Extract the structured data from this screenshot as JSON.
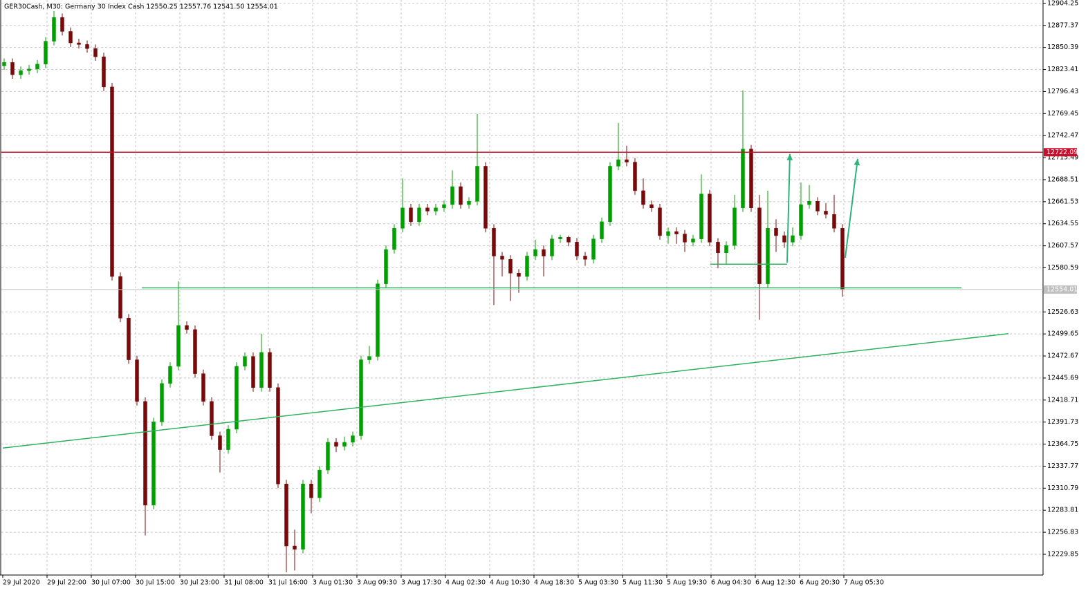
{
  "chart_data": {
    "type": "candlestick",
    "title": "GER30Cash, M30:  Germany 30 Index Cash  12550.25 12557.76 12541.50 12554.01",
    "categories": [
      "29 Jul 2020",
      "29 Jul 22:00",
      "30 Jul 07:00",
      "30 Jul 15:00",
      "30 Jul 23:00",
      "31 Jul 08:00",
      "31 Jul 16:00",
      "3 Aug 01:30",
      "3 Aug 09:30",
      "3 Aug 17:30",
      "4 Aug 02:30",
      "4 Aug 10:30",
      "4 Aug 18:30",
      "5 Aug 03:30",
      "5 Aug 11:30",
      "5 Aug 19:30",
      "6 Aug 04:30",
      "6 Aug 12:30",
      "6 Aug 20:30",
      "7 Aug 05:30"
    ],
    "ylim": [
      12204.47,
      12908.48
    ],
    "yticks": [
      12229.85,
      12256.83,
      12283.81,
      12310.79,
      12337.77,
      12364.75,
      12391.73,
      12418.71,
      12445.69,
      12472.67,
      12499.65,
      12526.63,
      12580.59,
      12607.57,
      12634.55,
      12661.53,
      12688.51,
      12715.49,
      12742.47,
      12769.45,
      12796.43,
      12823.41,
      12850.39,
      12877.37,
      12904.25
    ],
    "grid": true,
    "up_color": "#00a000",
    "down_color": "#7a0a0a",
    "open": [
      12828,
      12832,
      12817,
      12822,
      12824,
      12830,
      12858,
      12887,
      12870,
      12856,
      12854,
      12849,
      12839,
      12802,
      12570,
      12519,
      12468,
      12417,
      12290,
      12392,
      12439,
      12460,
      12510,
      12505,
      12451,
      12417,
      12375,
      12358,
      12383,
      12460,
      12472,
      12434,
      12477,
      12434,
      12316,
      12240,
      12236,
      12316,
      12299,
      12333,
      12367,
      12362,
      12367,
      12375,
      12468,
      12472,
      12561,
      12603,
      12629,
      12654,
      12637,
      12654,
      12650,
      12654,
      12658,
      12680,
      12658,
      12662,
      12705,
      12629,
      12595,
      12591,
      12574,
      12570,
      12595,
      12603,
      12595,
      12616,
      12618,
      12612,
      12595,
      12591,
      12616,
      12637,
      12705,
      12713,
      12710,
      12675,
      12658,
      12654,
      12620,
      12625,
      12622,
      12612,
      12616,
      12671,
      12612,
      12599,
      12608,
      12654,
      12726,
      12654,
      12561,
      12629,
      12620,
      12612,
      12620,
      12658,
      12662,
      12650,
      12646,
      12629
    ],
    "high": [
      12837,
      12837,
      12827,
      12829,
      12835,
      12863,
      12895,
      12892,
      12875,
      12861,
      12859,
      12854,
      12844,
      12807,
      12575,
      12524,
      12473,
      12422,
      12397,
      12444,
      12465,
      12564,
      12515,
      12510,
      12456,
      12422,
      12380,
      12388,
      12465,
      12477,
      12477,
      12500,
      12482,
      12439,
      12321,
      12260,
      12321,
      12321,
      12338,
      12372,
      12372,
      12374,
      12380,
      12473,
      12485,
      12566,
      12608,
      12634,
      12690,
      12659,
      12659,
      12659,
      12659,
      12663,
      12700,
      12685,
      12667,
      12769,
      12710,
      12634,
      12600,
      12596,
      12579,
      12600,
      12615,
      12608,
      12621,
      12621,
      12620,
      12617,
      12600,
      12621,
      12642,
      12710,
      12758,
      12730,
      12715,
      12690,
      12663,
      12659,
      12630,
      12630,
      12627,
      12621,
      12695,
      12676,
      12617,
      12613,
      12670,
      12798,
      12731,
      12670,
      12675,
      12640,
      12625,
      12630,
      12685,
      12682,
      12667,
      12660,
      12670,
      12634
    ],
    "low": [
      12823,
      12812,
      12812,
      12817,
      12819,
      12825,
      12853,
      12865,
      12851,
      12849,
      12844,
      12834,
      12797,
      12565,
      12514,
      12463,
      12412,
      12253,
      12285,
      12387,
      12434,
      12455,
      12500,
      12446,
      12412,
      12370,
      12330,
      12353,
      12378,
      12455,
      12429,
      12429,
      12429,
      12311,
      12208,
      12210,
      12231,
      12280,
      12294,
      12328,
      12355,
      12357,
      12362,
      12370,
      12463,
      12467,
      12556,
      12598,
      12624,
      12632,
      12632,
      12645,
      12645,
      12649,
      12653,
      12653,
      12653,
      12657,
      12624,
      12535,
      12570,
      12540,
      12550,
      12565,
      12590,
      12570,
      12590,
      12611,
      12607,
      12590,
      12583,
      12586,
      12611,
      12632,
      12700,
      12705,
      12670,
      12653,
      12649,
      12615,
      12610,
      12610,
      12600,
      12607,
      12611,
      12607,
      12580,
      12585,
      12603,
      12649,
      12649,
      12517,
      12556,
      12600,
      12605,
      12607,
      12615,
      12653,
      12645,
      12641,
      12624,
      12545
    ],
    "close": [
      12832,
      12817,
      12822,
      12824,
      12830,
      12858,
      12887,
      12870,
      12856,
      12854,
      12849,
      12839,
      12802,
      12570,
      12519,
      12468,
      12417,
      12290,
      12392,
      12439,
      12460,
      12510,
      12505,
      12451,
      12417,
      12375,
      12358,
      12383,
      12460,
      12472,
      12434,
      12477,
      12434,
      12316,
      12240,
      12236,
      12316,
      12299,
      12333,
      12367,
      12362,
      12367,
      12375,
      12468,
      12472,
      12561,
      12603,
      12629,
      12654,
      12637,
      12654,
      12650,
      12654,
      12658,
      12680,
      12658,
      12662,
      12705,
      12629,
      12595,
      12591,
      12574,
      12570,
      12595,
      12603,
      12595,
      12616,
      12618,
      12612,
      12595,
      12591,
      12616,
      12637,
      12705,
      12713,
      12710,
      12675,
      12658,
      12654,
      12620,
      12625,
      12622,
      12612,
      12616,
      12671,
      12612,
      12599,
      12608,
      12654,
      12726,
      12654,
      12561,
      12629,
      12620,
      12612,
      12620,
      12658,
      12662,
      12650,
      12646,
      12629,
      12554
    ],
    "resistance": {
      "value": 12722.09,
      "color": "#c8102e"
    },
    "price": {
      "value": 12554.01,
      "color": "#c0c0c0"
    },
    "lines": [
      {
        "values": [
          12556,
          12556
        ],
        "color": "#2db35d"
      },
      {
        "values": [
          12360,
          12500
        ],
        "color": "#2db35d"
      },
      {
        "values": [
          12585,
          12585
        ],
        "color": "#2db35d"
      }
    ],
    "arrows": [
      {
        "values": [
          12587,
          12720
        ],
        "color": "#2db37a"
      },
      {
        "values": [
          12593,
          12714
        ],
        "color": "#2db37a"
      }
    ]
  }
}
